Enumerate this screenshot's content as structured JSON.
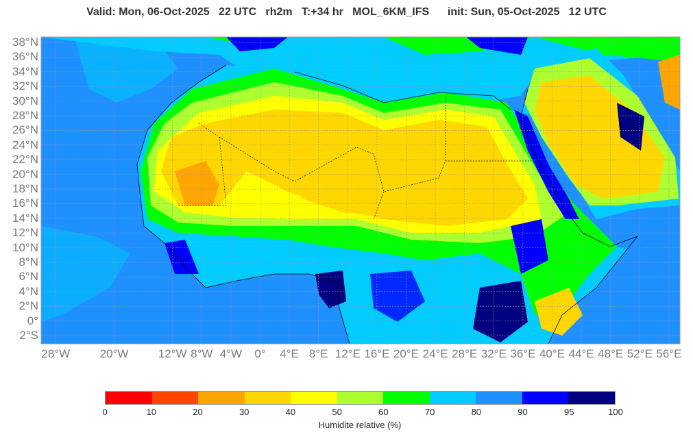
{
  "header": {
    "title": "Valid: Mon, 06-Oct-2025   22 UTC   rh2m   T:+34 hr   MOL_6KM_IFS      init: Sun, 05-Oct-2025   12 UTC"
  },
  "map": {
    "lat_labels": [
      "38°N",
      "36°N",
      "34°N",
      "32°N",
      "30°N",
      "28°N",
      "26°N",
      "24°N",
      "22°N",
      "20°N",
      "18°N",
      "16°N",
      "14°N",
      "12°N",
      "10°N",
      "8°N",
      "6°N",
      "4°N",
      "2°N",
      "0°",
      "2°S"
    ],
    "lat_values": [
      38,
      36,
      34,
      32,
      30,
      28,
      26,
      24,
      22,
      20,
      18,
      16,
      14,
      12,
      10,
      8,
      6,
      4,
      2,
      0,
      -2
    ],
    "lon_labels": [
      "28°W",
      "20°W",
      "12°W",
      "8°W",
      "4°W",
      "0°",
      "4°E",
      "8°E",
      "12°E",
      "16°E",
      "20°E",
      "24°E",
      "28°E",
      "32°E",
      "36°E",
      "40°E",
      "44°E",
      "48°E",
      "52°E",
      "56°E"
    ],
    "lon_values": [
      -28,
      -20,
      -12,
      -8,
      -4,
      0,
      4,
      8,
      12,
      16,
      20,
      24,
      28,
      32,
      36,
      40,
      44,
      48,
      52,
      56
    ]
  },
  "colorbar": {
    "title": "Humidite relative (%)",
    "labels": [
      "0",
      "10",
      "20",
      "30",
      "40",
      "50",
      "60",
      "70",
      "80",
      "90",
      "95",
      "100"
    ],
    "colors": [
      "#ff0000",
      "#ff4500",
      "#ffa500",
      "#ffd700",
      "#ffff00",
      "#adff2f",
      "#00ff00",
      "#00ccff",
      "#1e90ff",
      "#0000ff",
      "#000080"
    ]
  }
}
